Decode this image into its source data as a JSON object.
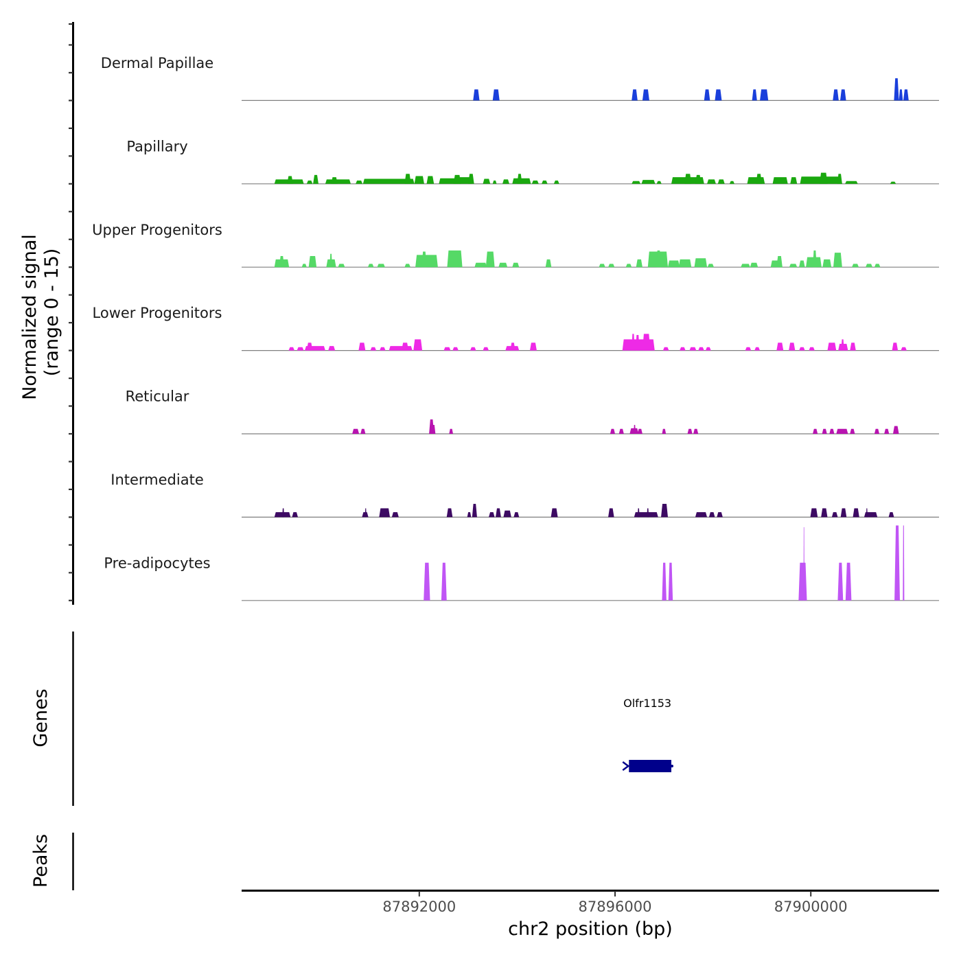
{
  "chart_data": {
    "type": "area",
    "title": "",
    "xlabel": "chr2 position (bp)",
    "ylabel": "Normalized signal\n(range 0 - 15)",
    "ylabel_lines": [
      "Normalized signal",
      "(range 0 - 15)"
    ],
    "xlim": [
      87888370,
      87902620
    ],
    "ylim": [
      0,
      15
    ],
    "x_ticks": [
      87892000,
      87896000,
      87900000
    ],
    "x_tick_labels": [
      "87892000",
      "87896000",
      "87900000"
    ],
    "grid": false,
    "legend": "none",
    "series": [
      {
        "name": "Dermal Papillae",
        "color": "#1a3fdb",
        "segments": [
          [
            87893100,
            87893230,
            2
          ],
          [
            87893500,
            87893640,
            2
          ],
          [
            87896340,
            87896460,
            2
          ],
          [
            87896560,
            87896700,
            2
          ],
          [
            87897820,
            87897940,
            2
          ],
          [
            87898040,
            87898180,
            2
          ],
          [
            87898800,
            87898900,
            2
          ],
          [
            87898960,
            87899130,
            2
          ],
          [
            87900450,
            87900570,
            2
          ],
          [
            87900600,
            87900720,
            2
          ],
          [
            87901700,
            87901800,
            4
          ],
          [
            87901800,
            87901880,
            2
          ],
          [
            87901890,
            87902000,
            2
          ]
        ]
      },
      {
        "name": "Papillary",
        "color": "#1aa80f",
        "segments": [
          [
            87889040,
            87889640,
            0.8
          ],
          [
            87889300,
            87889420,
            1.4
          ],
          [
            87889700,
            87889820,
            0.6
          ],
          [
            87889830,
            87889940,
            1.6
          ],
          [
            87890080,
            87890600,
            0.8
          ],
          [
            87890200,
            87890330,
            1.2
          ],
          [
            87890700,
            87890840,
            0.6
          ],
          [
            87890850,
            87891900,
            0.9
          ],
          [
            87891700,
            87891830,
            1.8
          ],
          [
            87891900,
            87892100,
            1.4
          ],
          [
            87892150,
            87892300,
            1.4
          ],
          [
            87892400,
            87892800,
            1.0
          ],
          [
            87892700,
            87892850,
            1.6
          ],
          [
            87892800,
            87893070,
            1.2
          ],
          [
            87893000,
            87893120,
            1.8
          ],
          [
            87893300,
            87893450,
            0.9
          ],
          [
            87893500,
            87893580,
            0.6
          ],
          [
            87893700,
            87893840,
            0.8
          ],
          [
            87893900,
            87894280,
            1.0
          ],
          [
            87894000,
            87894100,
            1.8
          ],
          [
            87894300,
            87894440,
            0.6
          ],
          [
            87894500,
            87894620,
            0.6
          ],
          [
            87894750,
            87894860,
            0.6
          ],
          [
            87896340,
            87896520,
            0.5
          ],
          [
            87896540,
            87896820,
            0.7
          ],
          [
            87896850,
            87896950,
            0.5
          ],
          [
            87897150,
            87897820,
            1.2
          ],
          [
            87897420,
            87897560,
            1.8
          ],
          [
            87897640,
            87897760,
            1.6
          ],
          [
            87897880,
            87898060,
            0.8
          ],
          [
            87898100,
            87898240,
            0.8
          ],
          [
            87898340,
            87898440,
            0.5
          ],
          [
            87898700,
            87899060,
            1.2
          ],
          [
            87898880,
            87899000,
            1.8
          ],
          [
            87899220,
            87899530,
            1.2
          ],
          [
            87899580,
            87899720,
            1.2
          ],
          [
            87899780,
            87900640,
            1.3
          ],
          [
            87900180,
            87900340,
            2.0
          ],
          [
            87900540,
            87900640,
            1.8
          ],
          [
            87900700,
            87900960,
            0.5
          ],
          [
            87901620,
            87901740,
            0.4
          ]
        ]
      },
      {
        "name": "Upper Progenitors",
        "color": "#55d966",
        "segments": [
          [
            87889040,
            87889340,
            1.4
          ],
          [
            87889140,
            87889240,
            2.0
          ],
          [
            87889600,
            87889700,
            0.6
          ],
          [
            87889740,
            87889900,
            2.0
          ],
          [
            87890100,
            87890300,
            1.4
          ],
          [
            87890170,
            87890220,
            2.4
          ],
          [
            87890340,
            87890480,
            0.6
          ],
          [
            87890950,
            87891070,
            0.6
          ],
          [
            87891140,
            87891300,
            0.6
          ],
          [
            87891700,
            87891820,
            0.6
          ],
          [
            87891920,
            87892380,
            2.2
          ],
          [
            87892050,
            87892150,
            2.8
          ],
          [
            87892570,
            87892880,
            3.0
          ],
          [
            87892680,
            87892800,
            2.0
          ],
          [
            87893130,
            87893380,
            0.8
          ],
          [
            87893360,
            87893540,
            2.8
          ],
          [
            87893620,
            87893800,
            0.8
          ],
          [
            87893900,
            87894040,
            0.8
          ],
          [
            87894580,
            87894700,
            1.4
          ],
          [
            87895670,
            87895800,
            0.6
          ],
          [
            87895860,
            87895990,
            0.6
          ],
          [
            87896220,
            87896340,
            0.6
          ],
          [
            87896430,
            87896560,
            1.4
          ],
          [
            87896670,
            87897080,
            2.8
          ],
          [
            87896840,
            87896940,
            3.0
          ],
          [
            87897080,
            87897320,
            1.2
          ],
          [
            87897300,
            87897560,
            1.4
          ],
          [
            87897620,
            87897880,
            1.6
          ],
          [
            87897890,
            87898020,
            0.6
          ],
          [
            87898570,
            87898760,
            0.6
          ],
          [
            87898760,
            87898920,
            0.8
          ],
          [
            87899180,
            87899420,
            1.2
          ],
          [
            87899300,
            87899420,
            2.0
          ],
          [
            87899560,
            87899720,
            0.6
          ],
          [
            87899760,
            87899880,
            1.2
          ],
          [
            87899900,
            87900220,
            1.8
          ],
          [
            87900040,
            87900120,
            3.0
          ],
          [
            87900240,
            87900420,
            1.4
          ],
          [
            87900460,
            87900640,
            2.6
          ],
          [
            87900840,
            87900980,
            0.6
          ],
          [
            87901120,
            87901260,
            0.6
          ],
          [
            87901300,
            87901420,
            0.6
          ]
        ]
      },
      {
        "name": "Lower Progenitors",
        "color": "#ee2ae6",
        "segments": [
          [
            87889330,
            87889450,
            0.6
          ],
          [
            87889500,
            87889640,
            0.6
          ],
          [
            87889660,
            87890080,
            0.8
          ],
          [
            87889700,
            87889820,
            1.4
          ],
          [
            87890140,
            87890280,
            0.8
          ],
          [
            87890760,
            87890900,
            1.4
          ],
          [
            87891000,
            87891120,
            0.6
          ],
          [
            87891190,
            87891310,
            0.6
          ],
          [
            87891380,
            87891860,
            0.8
          ],
          [
            87891640,
            87891780,
            1.4
          ],
          [
            87891880,
            87892060,
            2.0
          ],
          [
            87892500,
            87892640,
            0.6
          ],
          [
            87892680,
            87892800,
            0.6
          ],
          [
            87893040,
            87893160,
            0.6
          ],
          [
            87893300,
            87893420,
            0.6
          ],
          [
            87893760,
            87894040,
            0.8
          ],
          [
            87893860,
            87893960,
            1.4
          ],
          [
            87894260,
            87894400,
            1.4
          ],
          [
            87896150,
            87896810,
            2.0
          ],
          [
            87896340,
            87896400,
            3.0
          ],
          [
            87896420,
            87896500,
            2.8
          ],
          [
            87896560,
            87896720,
            3.0
          ],
          [
            87896980,
            87897100,
            0.6
          ],
          [
            87897320,
            87897440,
            0.6
          ],
          [
            87897520,
            87897660,
            0.6
          ],
          [
            87897700,
            87897820,
            0.6
          ],
          [
            87897850,
            87897960,
            0.6
          ],
          [
            87898660,
            87898780,
            0.6
          ],
          [
            87898850,
            87898960,
            0.6
          ],
          [
            87899300,
            87899440,
            1.4
          ],
          [
            87899550,
            87899680,
            1.4
          ],
          [
            87899760,
            87899880,
            0.6
          ],
          [
            87899960,
            87900080,
            0.6
          ],
          [
            87900340,
            87900520,
            1.4
          ],
          [
            87900560,
            87900760,
            1.2
          ],
          [
            87900620,
            87900680,
            2.0
          ],
          [
            87900800,
            87900920,
            1.4
          ],
          [
            87901660,
            87901780,
            1.4
          ],
          [
            87901840,
            87901960,
            0.6
          ]
        ]
      },
      {
        "name": "Reticular",
        "color": "#b814b0",
        "segments": [
          [
            87890630,
            87890770,
            0.9
          ],
          [
            87890800,
            87890900,
            0.9
          ],
          [
            87892200,
            87892300,
            2.6
          ],
          [
            87892250,
            87892330,
            1.6
          ],
          [
            87892610,
            87892690,
            0.9
          ],
          [
            87895900,
            87896000,
            0.9
          ],
          [
            87896080,
            87896180,
            0.9
          ],
          [
            87896300,
            87896480,
            1.0
          ],
          [
            87896380,
            87896420,
            1.6
          ],
          [
            87896460,
            87896560,
            0.9
          ],
          [
            87896960,
            87897040,
            0.9
          ],
          [
            87897480,
            87897580,
            0.9
          ],
          [
            87897600,
            87897700,
            0.9
          ],
          [
            87900040,
            87900140,
            0.9
          ],
          [
            87900230,
            87900330,
            0.9
          ],
          [
            87900380,
            87900480,
            0.9
          ],
          [
            87900520,
            87900760,
            0.9
          ],
          [
            87900800,
            87900900,
            0.9
          ],
          [
            87901300,
            87901400,
            0.9
          ],
          [
            87901500,
            87901600,
            0.9
          ],
          [
            87901680,
            87901800,
            1.4
          ]
        ]
      },
      {
        "name": "Intermediate",
        "color": "#3d0a63",
        "segments": [
          [
            87889040,
            87889370,
            0.9
          ],
          [
            87889200,
            87889240,
            1.6
          ],
          [
            87889400,
            87889520,
            0.9
          ],
          [
            87890830,
            87890960,
            0.9
          ],
          [
            87890890,
            87890920,
            1.6
          ],
          [
            87891180,
            87891400,
            1.6
          ],
          [
            87891440,
            87891580,
            0.9
          ],
          [
            87892560,
            87892680,
            1.6
          ],
          [
            87892980,
            87893060,
            0.9
          ],
          [
            87893080,
            87893180,
            2.4
          ],
          [
            87893420,
            87893540,
            0.9
          ],
          [
            87893560,
            87893670,
            1.6
          ],
          [
            87893720,
            87893880,
            1.2
          ],
          [
            87893930,
            87894040,
            0.9
          ],
          [
            87894690,
            87894830,
            1.6
          ],
          [
            87895860,
            87895980,
            1.6
          ],
          [
            87896390,
            87896880,
            0.9
          ],
          [
            87896460,
            87896500,
            1.6
          ],
          [
            87896650,
            87896690,
            1.6
          ],
          [
            87896940,
            87897080,
            2.4
          ],
          [
            87897640,
            87897880,
            0.9
          ],
          [
            87897920,
            87898040,
            0.9
          ],
          [
            87898080,
            87898200,
            0.9
          ],
          [
            87899990,
            87900140,
            1.6
          ],
          [
            87900210,
            87900340,
            1.6
          ],
          [
            87900430,
            87900550,
            0.9
          ],
          [
            87900610,
            87900730,
            1.6
          ],
          [
            87900860,
            87900990,
            1.6
          ],
          [
            87901090,
            87901360,
            0.9
          ],
          [
            87901130,
            87901160,
            1.6
          ],
          [
            87901590,
            87901700,
            0.9
          ]
        ]
      },
      {
        "name": "Pre-adipocytes",
        "color": "#c055f5",
        "segments": [
          [
            87892090,
            87892220,
            6.8
          ],
          [
            87892450,
            87892560,
            6.8
          ],
          [
            87896960,
            87897050,
            6.8
          ],
          [
            87897090,
            87897180,
            6.8
          ],
          [
            87899750,
            87899920,
            6.8
          ],
          [
            87899850,
            87899870,
            13.2
          ],
          [
            87900550,
            87900660,
            6.8
          ],
          [
            87900710,
            87900830,
            6.8
          ],
          [
            87901710,
            87901820,
            13.5
          ],
          [
            87901880,
            87901910,
            13.5
          ]
        ]
      }
    ],
    "gene_track": {
      "label": "Genes",
      "genes": [
        {
          "name": "Olfr1153",
          "start": 87896200,
          "end": 87897150,
          "strand": "-",
          "color": "#00008b"
        }
      ]
    },
    "peak_track": {
      "label": "Peaks",
      "peaks": []
    }
  }
}
